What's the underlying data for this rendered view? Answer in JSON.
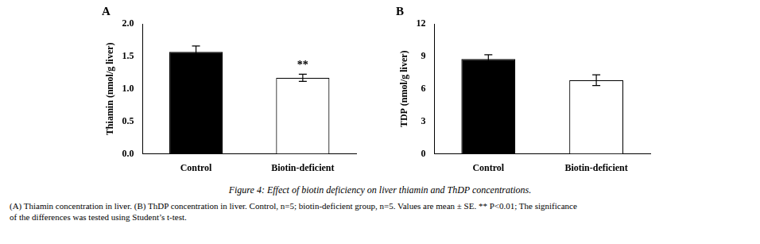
{
  "title": "Figure 4: Effect of biotin deficiency on liver thiamin and ThDP concentrations.",
  "annotations": [
    "(A) Thiamin concentration in liver. (B) ThDP concentration in liver. Control, n=5; biotin-deficient group, n=5. Values are mean ± SE. ** P<0.01; The significance",
    "of the differences was tested using Student’s t-test."
  ],
  "chart_data": [
    {
      "type": "bar",
      "title": "A",
      "categories": [
        "Control",
        "Biotin-deficient"
      ],
      "values": [
        1.57,
        1.17
      ],
      "errors": [
        0.09,
        0.055
      ],
      "colors": [
        "black",
        "white"
      ],
      "ylabel": "Thiamin (nmol/g liver)",
      "ylim": [
        0,
        2.0
      ],
      "yticks": [
        {
          "value": 0,
          "label": "0.0"
        },
        0.5,
        {
          "value": 1,
          "label": "1.0"
        },
        1.5,
        {
          "value": 2,
          "label": "2.0"
        }
      ],
      "annotations": [
        {
          "text": "**",
          "category": "Biotin-deficient"
        }
      ],
      "grid": false
    },
    {
      "type": "bar",
      "title": "B",
      "categories": [
        "Control",
        "Biotin-deficient"
      ],
      "values": [
        8.75,
        6.8
      ],
      "errors": [
        0.4,
        0.5
      ],
      "colors": [
        "black",
        "white"
      ],
      "ylabel": "TDP (nmol/g liver)",
      "ylim": [
        0,
        12
      ],
      "yticks": [
        0,
        3,
        6,
        9,
        12
      ],
      "grid": false
    }
  ]
}
